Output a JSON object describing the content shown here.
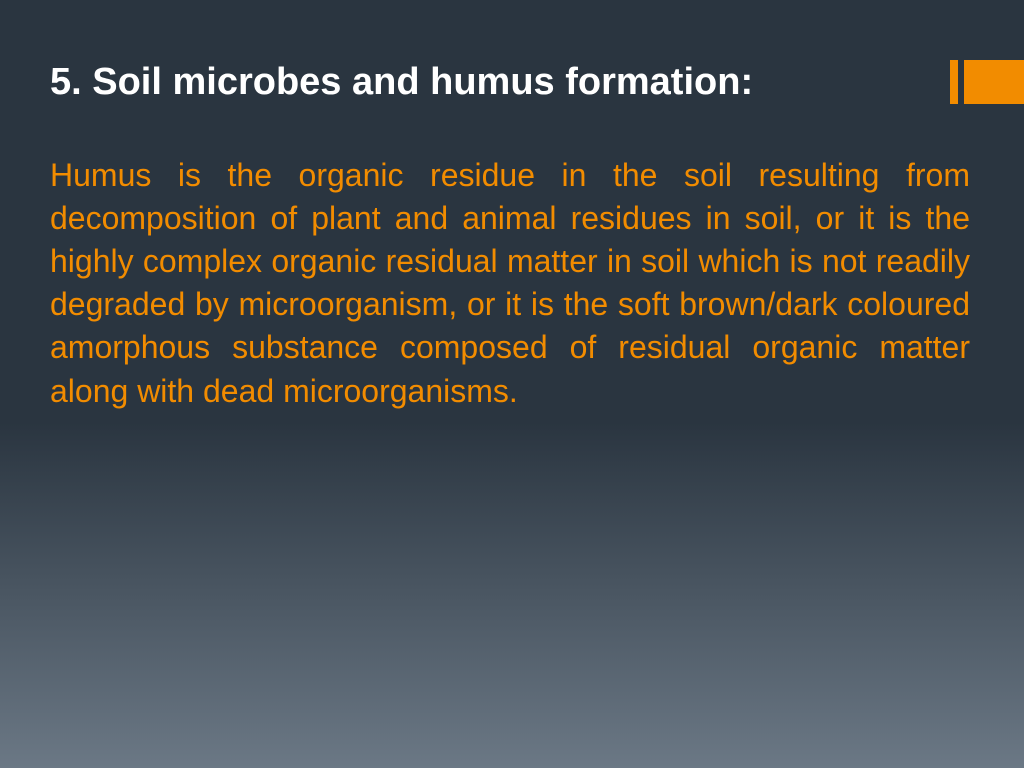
{
  "slide": {
    "title": "5. Soil microbes and humus formation:",
    "body": "Humus is the organic residue in the soil resulting from decomposition of plant and animal residues in soil, or it is the highly complex organic residual matter in soil which is not readily degraded by microorganism, or it is the soft brown/dark coloured amorphous substance composed of residual organic matter along with dead microorganisms."
  },
  "style": {
    "title_color": "#ffffff",
    "title_fontsize": 38,
    "title_fontweight": "bold",
    "body_color": "#f28c00",
    "body_fontsize": 32,
    "body_align": "justify",
    "accent_color": "#f28c00",
    "background_gradient_top": "#2a3540",
    "background_gradient_bottom": "#6b7885",
    "font_family": "Arial"
  }
}
